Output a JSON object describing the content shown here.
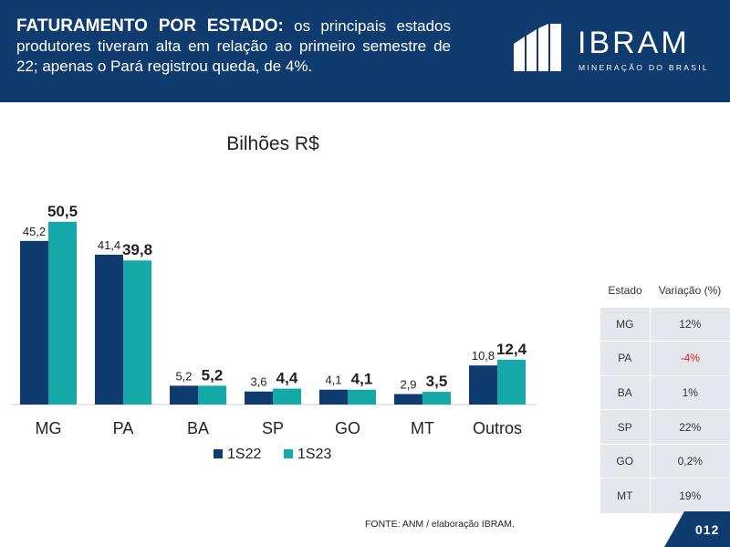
{
  "header": {
    "title_bold": "FATURAMENTO POR ESTADO:",
    "title_rest": " os principais estados produtores tiveram alta em relação ao primeiro semestre de 22; apenas o Pará registrou queda, de 4%."
  },
  "logo": {
    "name": "IBRAM",
    "tagline": "MINERAÇÃO DO BRASIL"
  },
  "chart_data": {
    "type": "bar",
    "title": "Bilhões R$",
    "categories": [
      "MG",
      "PA",
      "BA",
      "SP",
      "GO",
      "MT",
      "Outros"
    ],
    "series": [
      {
        "name": "1S22",
        "values": [
          45.2,
          41.4,
          5.2,
          3.6,
          4.1,
          2.9,
          10.8
        ],
        "labels": [
          "45,2",
          "41,4",
          "5,2",
          "3,6",
          "4,1",
          "2,9",
          "10,8"
        ],
        "color": "#0f3b6e"
      },
      {
        "name": "1S23",
        "values": [
          50.5,
          39.8,
          5.2,
          4.4,
          4.1,
          3.5,
          12.4
        ],
        "labels": [
          "50,5",
          "39,8",
          "5,2",
          "4,4",
          "4,1",
          "3,5",
          "12,4"
        ],
        "color": "#14a8a8"
      }
    ],
    "ylim": [
      0,
      55
    ],
    "xlabel": "",
    "ylabel": "",
    "legend": "bottom"
  },
  "table": {
    "headers": [
      "Estado",
      "Variação (%)"
    ],
    "rows": [
      {
        "estado": "MG",
        "variacao": "12%",
        "negative": false
      },
      {
        "estado": "PA",
        "variacao": "-4%",
        "negative": true
      },
      {
        "estado": "BA",
        "variacao": "1%",
        "negative": false
      },
      {
        "estado": "SP",
        "variacao": "22%",
        "negative": false
      },
      {
        "estado": "GO",
        "variacao": "0,2%",
        "negative": false
      },
      {
        "estado": "MT",
        "variacao": "19%",
        "negative": false
      }
    ]
  },
  "footer": {
    "source": "FONTE: ANM / elaboração IBRAM.",
    "page": "012"
  },
  "colors": {
    "navy": "#0f3b6e",
    "teal": "#14a8a8",
    "negative": "#e02020",
    "table_bg": "#e4e8ee"
  }
}
